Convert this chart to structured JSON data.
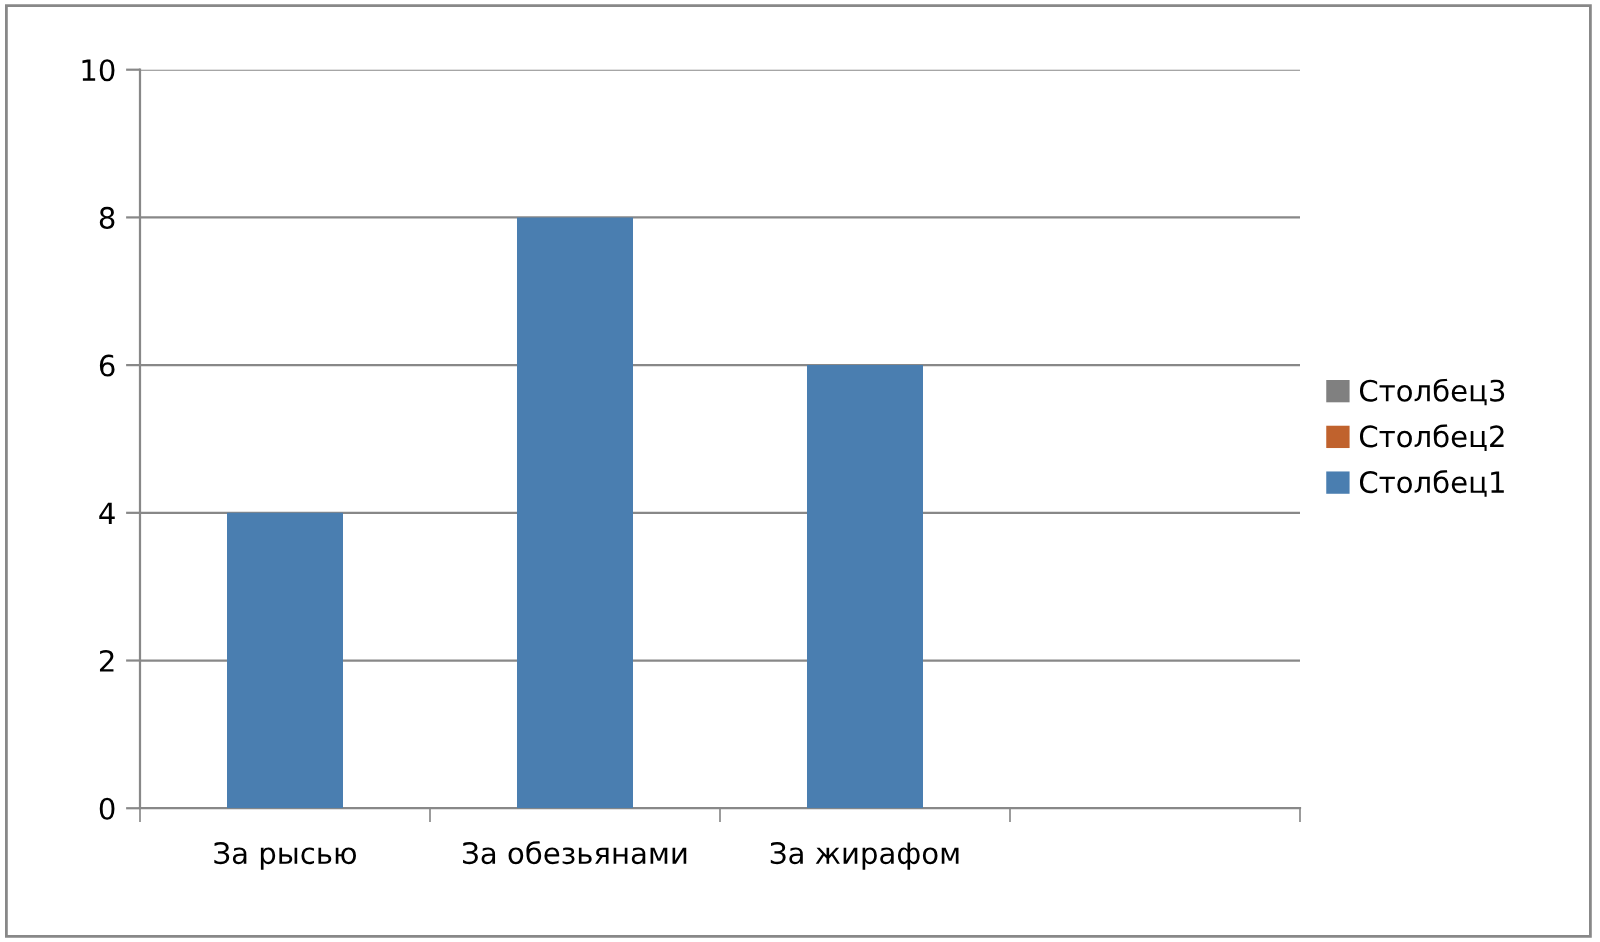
{
  "chart_data": {
    "type": "bar",
    "categories": [
      "За рысью",
      "За обезьянами",
      "За жирафом",
      null
    ],
    "series": [
      {
        "name": "Столбец1",
        "color": "#4a7eb0",
        "values": [
          4,
          8,
          6,
          null
        ]
      },
      {
        "name": "Столбец2",
        "color": "#c0622d",
        "values": [
          null,
          null,
          null,
          null
        ]
      },
      {
        "name": "Столбец3",
        "color": "#808080",
        "values": [
          null,
          null,
          null,
          null
        ]
      }
    ],
    "ylim": [
      0,
      10
    ],
    "yticks": [
      0,
      2,
      4,
      6,
      8,
      10
    ],
    "grid": "y",
    "legend": "right"
  }
}
